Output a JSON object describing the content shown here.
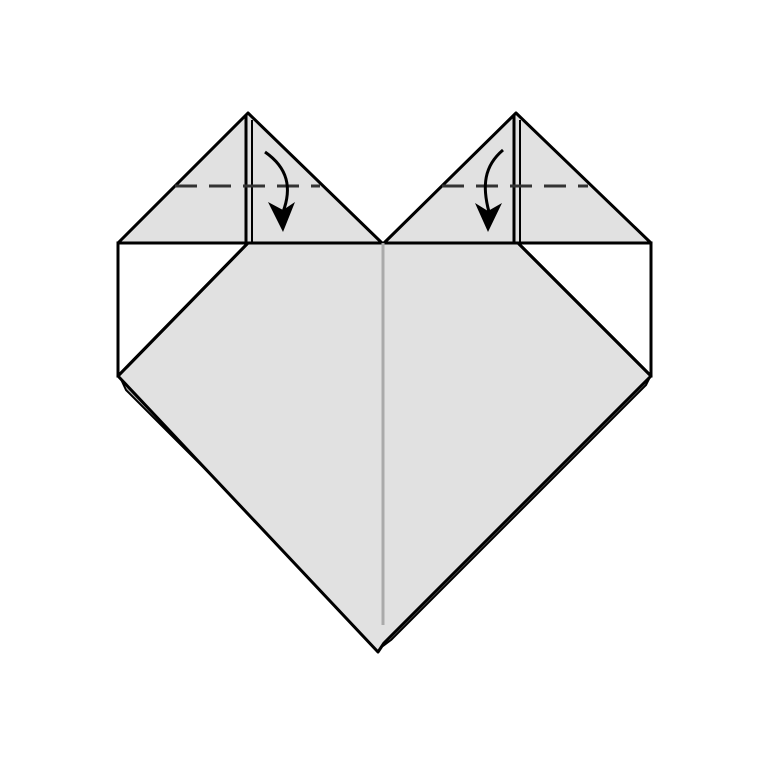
{
  "diagram": {
    "type": "origami-fold-step",
    "subject": "heart",
    "background_color": "#ffffff",
    "paper_color": "#e1e1e1",
    "back_layer_color": "#b4b4b4",
    "line_color": "#000000",
    "center_crease_color": "#aaaaaa",
    "fold_lines": [
      {
        "name": "left-top-flap-fold",
        "style": "valley-dashed"
      },
      {
        "name": "right-top-flap-fold",
        "style": "valley-dashed"
      }
    ],
    "arrows": [
      {
        "name": "left-fold-down-arrow",
        "direction": "down"
      },
      {
        "name": "right-fold-down-arrow",
        "direction": "down"
      }
    ]
  }
}
